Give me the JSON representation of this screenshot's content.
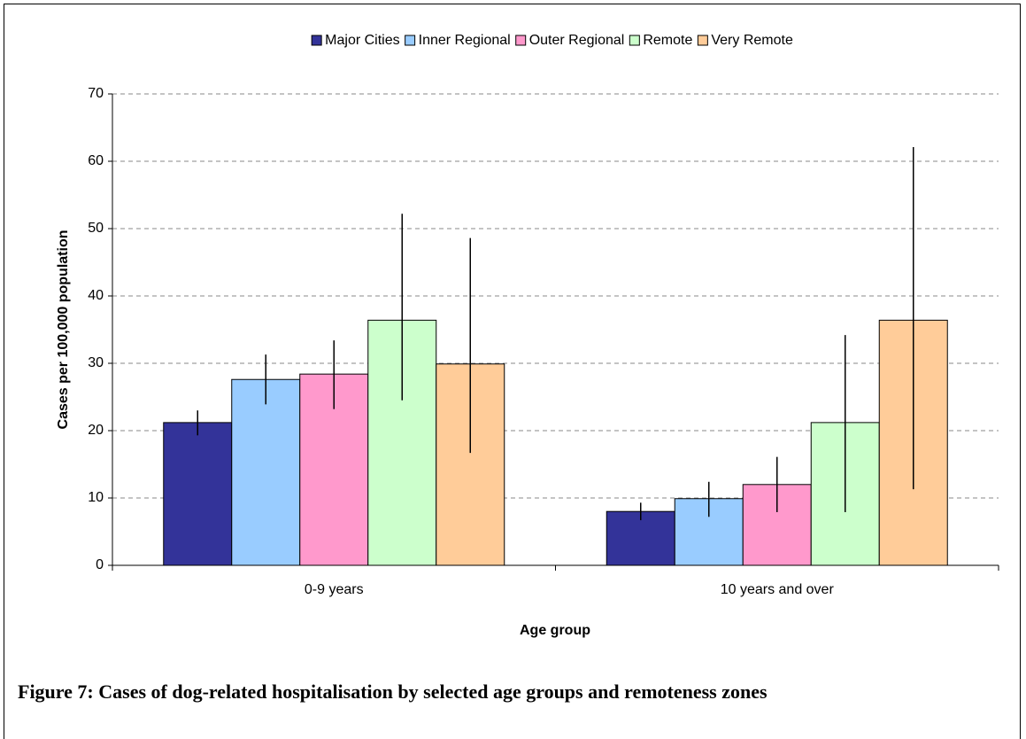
{
  "chart_data": {
    "type": "bar",
    "y_label": "Cases per 100,000 population",
    "x_label": "Age group",
    "caption": "Figure 7: Cases of dog-related hospitalisation by selected age groups and remoteness zones",
    "categories": [
      "0-9 years",
      "10 years and over"
    ],
    "series": [
      {
        "name": "Major Cities",
        "color": "#333399",
        "values": [
          21.2,
          8.0
        ],
        "lower": [
          19.3,
          6.7
        ],
        "upper": [
          23.0,
          9.3
        ]
      },
      {
        "name": "Inner Regional",
        "color": "#99ccff",
        "values": [
          27.6,
          9.9
        ],
        "lower": [
          23.9,
          7.2
        ],
        "upper": [
          31.3,
          12.4
        ]
      },
      {
        "name": "Outer Regional",
        "color": "#ff99cc",
        "values": [
          28.4,
          12.0
        ],
        "lower": [
          23.2,
          7.9
        ],
        "upper": [
          33.4,
          16.1
        ]
      },
      {
        "name": "Remote",
        "color": "#ccffcc",
        "values": [
          36.4,
          21.2
        ],
        "lower": [
          24.5,
          7.9
        ],
        "upper": [
          52.2,
          34.2
        ]
      },
      {
        "name": "Very Remote",
        "color": "#ffcc99",
        "values": [
          29.9,
          36.4
        ],
        "lower": [
          16.7,
          11.3
        ],
        "upper": [
          48.6,
          62.1
        ]
      }
    ],
    "ylim": [
      0,
      70
    ],
    "yticks": [
      0,
      10,
      20,
      30,
      40,
      50,
      60,
      70
    ],
    "grid": true,
    "legend": "top"
  }
}
